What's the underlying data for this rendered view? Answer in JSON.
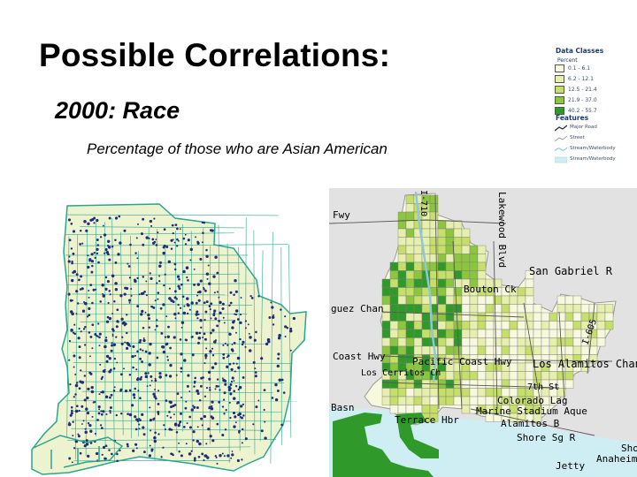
{
  "slide": {
    "title": "Possible Correlations:",
    "subtitle": "2000: Race",
    "caption": "Percentage of those who are Asian American"
  },
  "legend": {
    "heading": "Data Classes",
    "subheading": "Percent",
    "classes": [
      {
        "range": "0.1 - 6.1",
        "color": "#f7f9de"
      },
      {
        "range": "6.2 - 12.1",
        "color": "#e6efae"
      },
      {
        "range": "12.5 - 21.4",
        "color": "#c6df6a"
      },
      {
        "range": "21.9 - 37.0",
        "color": "#8cc63f"
      },
      {
        "range": "40.2 - 55.7",
        "color": "#2f9a2a"
      }
    ],
    "features_heading": "Features",
    "features": [
      {
        "label": "Major Road",
        "icon": "major-road-line"
      },
      {
        "label": "Street",
        "icon": "street-line"
      },
      {
        "label": "Stream/Waterbody",
        "icon": "stream-line"
      },
      {
        "label": "Stream/Waterbody",
        "icon": "waterbody-fill"
      }
    ]
  },
  "right_map": {
    "labels": {
      "fwy": "Fwy",
      "i710": "I-710",
      "lakewood": "Lakewood Blvd",
      "san_gabriel": "San Gabriel R",
      "bouton": "Bouton Ck",
      "dominguez": "guez Chan",
      "coast_hwy": "Coast Hwy",
      "pacific_coast": "Pacific Coast Hwy",
      "los_alamitos": "Los Alamitos Chan",
      "los_cerritos": "Los Cerritos Ch",
      "i605": "I-605",
      "seventh": "7th St",
      "colorado": "Colorado Lag",
      "marine": "Marine Stadium Aque",
      "alamitos": "Alamitos B",
      "basin": "Basn",
      "terrace": "Terrace Hbr",
      "shore": "Shore Sg R",
      "jetty": "Jetty",
      "anaheim": "Anaheim B",
      "sho": "Sho"
    }
  },
  "colors": {
    "left_fill": "#eef3cf",
    "left_streets": "#2aa68f",
    "left_dots": "#1f2e78",
    "water": "#cfeef4",
    "land_gray": "#e2e2e2"
  }
}
